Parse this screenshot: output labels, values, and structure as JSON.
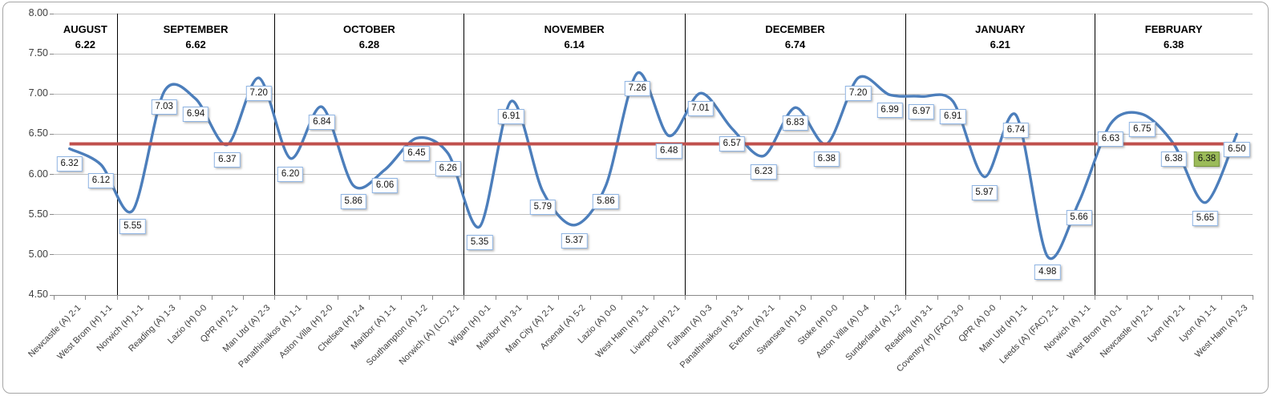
{
  "chart_data": {
    "type": "line",
    "title": "",
    "y_axis": {
      "min": 4.5,
      "max": 8.0,
      "step": 0.5,
      "tick_labels": [
        "8.00",
        "7.50",
        "7.00",
        "6.50",
        "6.00",
        "5.50",
        "5.00",
        "4.50"
      ]
    },
    "months": [
      {
        "label": "AUGUST",
        "average": "6.22",
        "match_count": 2
      },
      {
        "label": "SEPTEMBER",
        "average": "6.62",
        "match_count": 5
      },
      {
        "label": "OCTOBER",
        "average": "6.28",
        "match_count": 6
      },
      {
        "label": "NOVEMBER",
        "average": "6.14",
        "match_count": 7
      },
      {
        "label": "DECEMBER",
        "average": "6.74",
        "match_count": 7
      },
      {
        "label": "JANUARY",
        "average": "6.21",
        "match_count": 6
      },
      {
        "label": "FEBRUARY",
        "average": "6.38",
        "match_count": 5
      }
    ],
    "points": [
      {
        "match": "Newcastle (A) 2-1",
        "value": 6.32
      },
      {
        "match": "West Brom (H) 1-1",
        "value": 6.12
      },
      {
        "match": "Norwich (H) 1-1",
        "value": 5.55
      },
      {
        "match": "Reading (A) 1-3",
        "value": 7.03
      },
      {
        "match": "Lazio (H) 0-0",
        "value": 6.94
      },
      {
        "match": "QPR (H) 2-1",
        "value": 6.37
      },
      {
        "match": "Man Utd (A) 2-3",
        "value": 7.2
      },
      {
        "match": "Panathinaikos (A) 1-1",
        "value": 6.2
      },
      {
        "match": "Aston Villa (H) 2-0",
        "value": 6.84
      },
      {
        "match": "Chelsea (H) 2-4",
        "value": 5.86
      },
      {
        "match": "Maribor (A) 1-1",
        "value": 6.06
      },
      {
        "match": "Southampton (A) 1-2",
        "value": 6.45
      },
      {
        "match": "Norwich (A) (LC) 2-1",
        "value": 6.26
      },
      {
        "match": "Wigan (H) 0-1",
        "value": 5.35
      },
      {
        "match": "Maribor (H) 3-1",
        "value": 6.91
      },
      {
        "match": "Man City (A) 2-1",
        "value": 5.79
      },
      {
        "match": "Arsenal (A) 5-2",
        "value": 5.37
      },
      {
        "match": "Lazio (A) 0-0",
        "value": 5.86
      },
      {
        "match": "West Ham (H) 3-1",
        "value": 7.26
      },
      {
        "match": "Liverpool (H) 2-1",
        "value": 6.48
      },
      {
        "match": "Fulham (A) 0-3",
        "value": 7.01
      },
      {
        "match": "Panathinaikos (H) 3-1",
        "value": 6.57
      },
      {
        "match": "Everton (A) 2-1",
        "value": 6.23
      },
      {
        "match": "Swansea (H) 1-0",
        "value": 6.83
      },
      {
        "match": "Stoke (H) 0-0",
        "value": 6.38
      },
      {
        "match": "Aston Villa (A) 0-4",
        "value": 7.2
      },
      {
        "match": "Sunderland (A) 1-2",
        "value": 6.99
      },
      {
        "match": "Reading (H) 3-1",
        "value": 6.97
      },
      {
        "match": "Coventry (H) (FAC) 3-0",
        "value": 6.91
      },
      {
        "match": "QPR (A) 0-0",
        "value": 5.97
      },
      {
        "match": "Man Utd (H) 1-1",
        "value": 6.74
      },
      {
        "match": "Leeds (A) (FAC) 2-1",
        "value": 4.98
      },
      {
        "match": "Norwich (A) 1-1",
        "value": 5.66
      },
      {
        "match": "West Brom (A) 0-1",
        "value": 6.63
      },
      {
        "match": "Newcastle (H) 2-1",
        "value": 6.75
      },
      {
        "match": "Lyon (H) 2-1",
        "value": 6.38
      },
      {
        "match": "Lyon (A) 1-1",
        "value": 5.65
      },
      {
        "match": "West Ham (A) 2-3",
        "value": 6.5
      }
    ],
    "average_line": {
      "value": 6.38,
      "label": "6.38"
    },
    "layout_hints": {
      "grid": true,
      "legend": false,
      "x_labels_rotated_degrees": 45
    },
    "colors": {
      "series": "#4c7ebb",
      "average_line": "#c0504d",
      "label_box_bg": "#ffffff",
      "label_box_border": "#8eb4e3",
      "avg_label_bg": "#9bbb59",
      "avg_label_border": "#77933c",
      "gridline": "#bfbfbf",
      "axis": "#898989",
      "month_divider": "#000000"
    }
  }
}
